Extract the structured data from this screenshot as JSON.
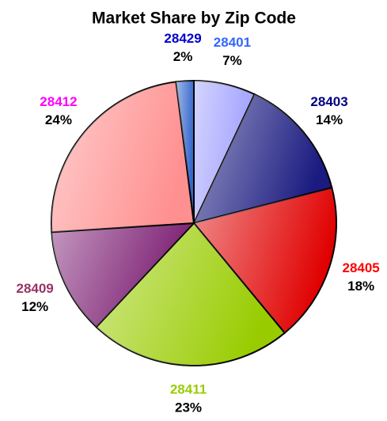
{
  "chart_data": {
    "type": "pie",
    "title": "Market Share by Zip Code",
    "categories": [
      "28401",
      "28403",
      "28405",
      "28411",
      "28409",
      "28412",
      "28429"
    ],
    "values": [
      7,
      14,
      18,
      23,
      12,
      24,
      2
    ],
    "value_labels": [
      "7%",
      "14%",
      "18%",
      "23%",
      "12%",
      "24%",
      "2%"
    ],
    "colors": [
      "#a0a0ff",
      "#1a1a80",
      "#e00000",
      "#99cc00",
      "#7a1a70",
      "#ff9090",
      "#3366cc"
    ],
    "label_colors": [
      "#3366ff",
      "#000080",
      "#ff0000",
      "#99cc00",
      "#993366",
      "#ff00ff",
      "#0000cc"
    ]
  }
}
